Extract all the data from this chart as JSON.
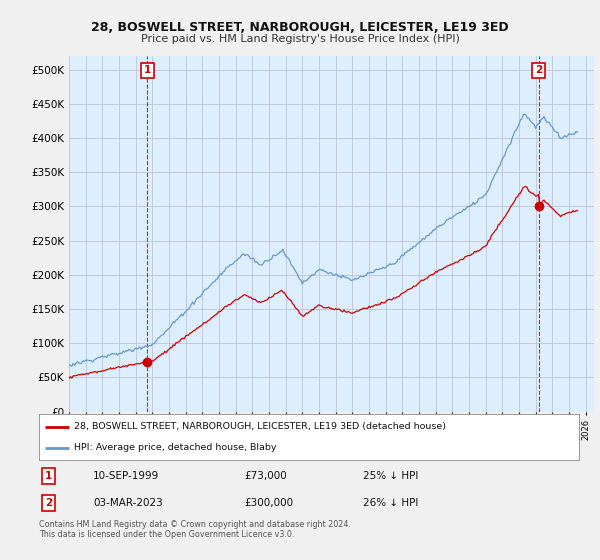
{
  "title": "28, BOSWELL STREET, NARBOROUGH, LEICESTER, LE19 3ED",
  "subtitle": "Price paid vs. HM Land Registry's House Price Index (HPI)",
  "legend_line1": "28, BOSWELL STREET, NARBOROUGH, LEICESTER, LE19 3ED (detached house)",
  "legend_line2": "HPI: Average price, detached house, Blaby",
  "annotation1_date": "10-SEP-1999",
  "annotation1_price": "£73,000",
  "annotation1_hpi": "25% ↓ HPI",
  "annotation2_date": "03-MAR-2023",
  "annotation2_price": "£300,000",
  "annotation2_hpi": "26% ↓ HPI",
  "footer": "Contains HM Land Registry data © Crown copyright and database right 2024.\nThis data is licensed under the Open Government Licence v3.0.",
  "red_color": "#cc0000",
  "blue_color": "#6699cc",
  "plot_bg_color": "#ddeeff",
  "fig_bg_color": "#f0f0f0",
  "ylim": [
    0,
    520000
  ],
  "yticks": [
    0,
    50000,
    100000,
    150000,
    200000,
    250000,
    300000,
    350000,
    400000,
    450000,
    500000
  ],
  "sale1_x": 1999.7,
  "sale1_y": 73000,
  "sale2_x": 2023.17,
  "sale2_y": 300000,
  "xmin": 1995.0,
  "xmax": 2026.5
}
